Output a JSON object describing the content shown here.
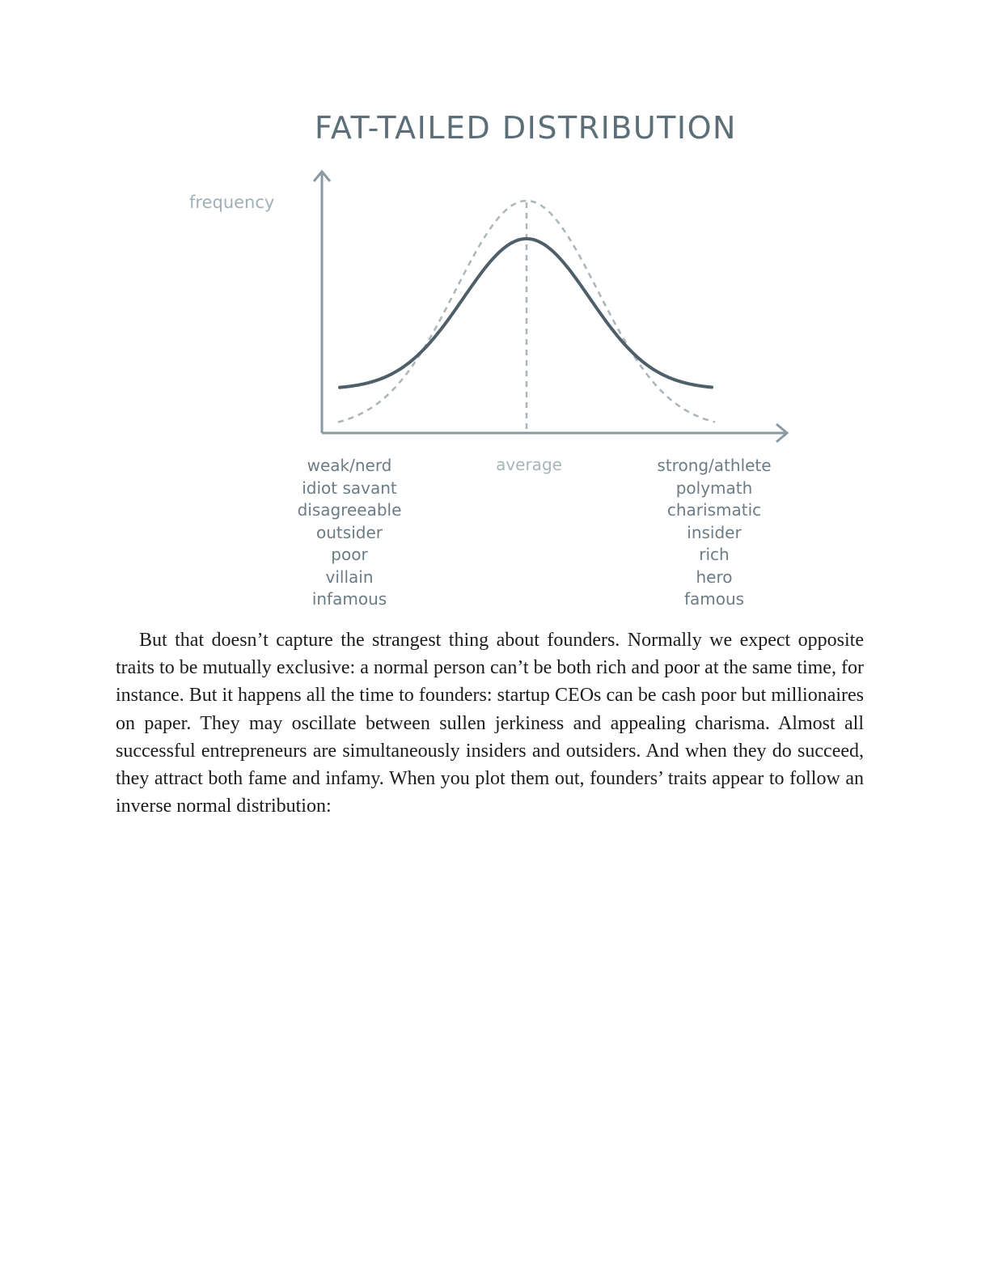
{
  "figure": {
    "title": "FAT-TAILED DISTRIBUTION",
    "ylabel": "frequency",
    "center_label": "average",
    "left_labels": [
      "weak/nerd",
      "idiot savant",
      "disagreeable",
      "outsider",
      "poor",
      "villain",
      "infamous"
    ],
    "right_labels": [
      "strong/athlete",
      "polymath",
      "charismatic",
      "insider",
      "rich",
      "hero",
      "famous"
    ],
    "colors": {
      "axis": "#8a9aa3",
      "solid_curve": "#4e5f69",
      "dashed_curve": "#a9b5bb",
      "title": "#5c6e78"
    }
  },
  "body": {
    "paragraph": "But that doesn’t capture the strangest thing about founders. Normally we expect opposite traits to be mutually exclusive: a normal person can’t be both rich and poor at the same time, for instance. But it happens all the time to founders: startup CEOs can be cash poor but millionaires on paper. They may oscillate between sullen jerkiness and appealing charisma. Almost all successful entrepreneurs are simultaneously insiders and outsiders. And when they do succeed, they attract both fame and infamy. When you plot them out, founders’ traits appear to follow an inverse normal distribution:"
  }
}
